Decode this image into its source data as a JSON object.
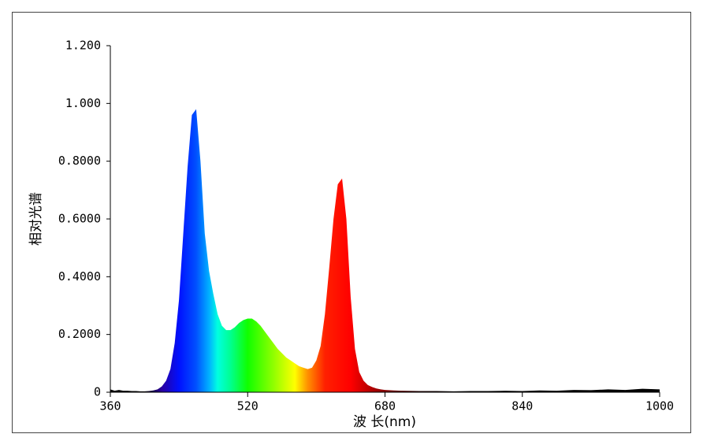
{
  "chart_data": {
    "type": "area",
    "xlabel": "波 长(nm)",
    "ylabel": "相对光谱",
    "x": [
      360,
      365,
      370,
      375,
      380,
      385,
      390,
      395,
      400,
      405,
      410,
      415,
      420,
      425,
      430,
      435,
      440,
      445,
      450,
      455,
      460,
      465,
      470,
      475,
      480,
      485,
      490,
      495,
      500,
      505,
      510,
      515,
      520,
      525,
      530,
      535,
      540,
      545,
      550,
      555,
      560,
      565,
      570,
      575,
      580,
      585,
      590,
      595,
      600,
      605,
      610,
      615,
      620,
      625,
      630,
      635,
      640,
      645,
      650,
      655,
      660,
      665,
      670,
      675,
      680,
      690,
      700,
      720,
      740,
      760,
      780,
      800,
      820,
      840,
      860,
      880,
      900,
      920,
      940,
      960,
      980,
      1000
    ],
    "values": [
      0.01,
      0.005,
      0.008,
      0.005,
      0.005,
      0.004,
      0.004,
      0.003,
      0.003,
      0.004,
      0.006,
      0.01,
      0.02,
      0.04,
      0.08,
      0.17,
      0.32,
      0.55,
      0.78,
      0.96,
      0.98,
      0.8,
      0.55,
      0.42,
      0.34,
      0.27,
      0.23,
      0.215,
      0.215,
      0.225,
      0.24,
      0.25,
      0.255,
      0.255,
      0.245,
      0.23,
      0.21,
      0.19,
      0.17,
      0.15,
      0.135,
      0.12,
      0.11,
      0.1,
      0.09,
      0.085,
      0.08,
      0.085,
      0.11,
      0.16,
      0.27,
      0.43,
      0.6,
      0.72,
      0.74,
      0.6,
      0.33,
      0.15,
      0.07,
      0.04,
      0.025,
      0.018,
      0.013,
      0.01,
      0.008,
      0.006,
      0.005,
      0.004,
      0.004,
      0.003,
      0.004,
      0.004,
      0.005,
      0.004,
      0.006,
      0.005,
      0.008,
      0.007,
      0.01,
      0.008,
      0.012,
      0.01
    ],
    "xlim": [
      360,
      1000
    ],
    "xticks": [
      360,
      520,
      680,
      840,
      1000
    ],
    "ylim": [
      0,
      1.2
    ],
    "yticks": [
      0,
      {
        "value": 0.2,
        "label": "0.2000"
      },
      {
        "value": 0.4,
        "label": "0.4000"
      },
      {
        "value": 0.6,
        "label": "0.6000"
      },
      {
        "value": 0.8,
        "label": "0.8000"
      },
      {
        "value": 1.0,
        "label": "1.000"
      },
      {
        "value": 1.2,
        "label": "1.200"
      }
    ]
  }
}
